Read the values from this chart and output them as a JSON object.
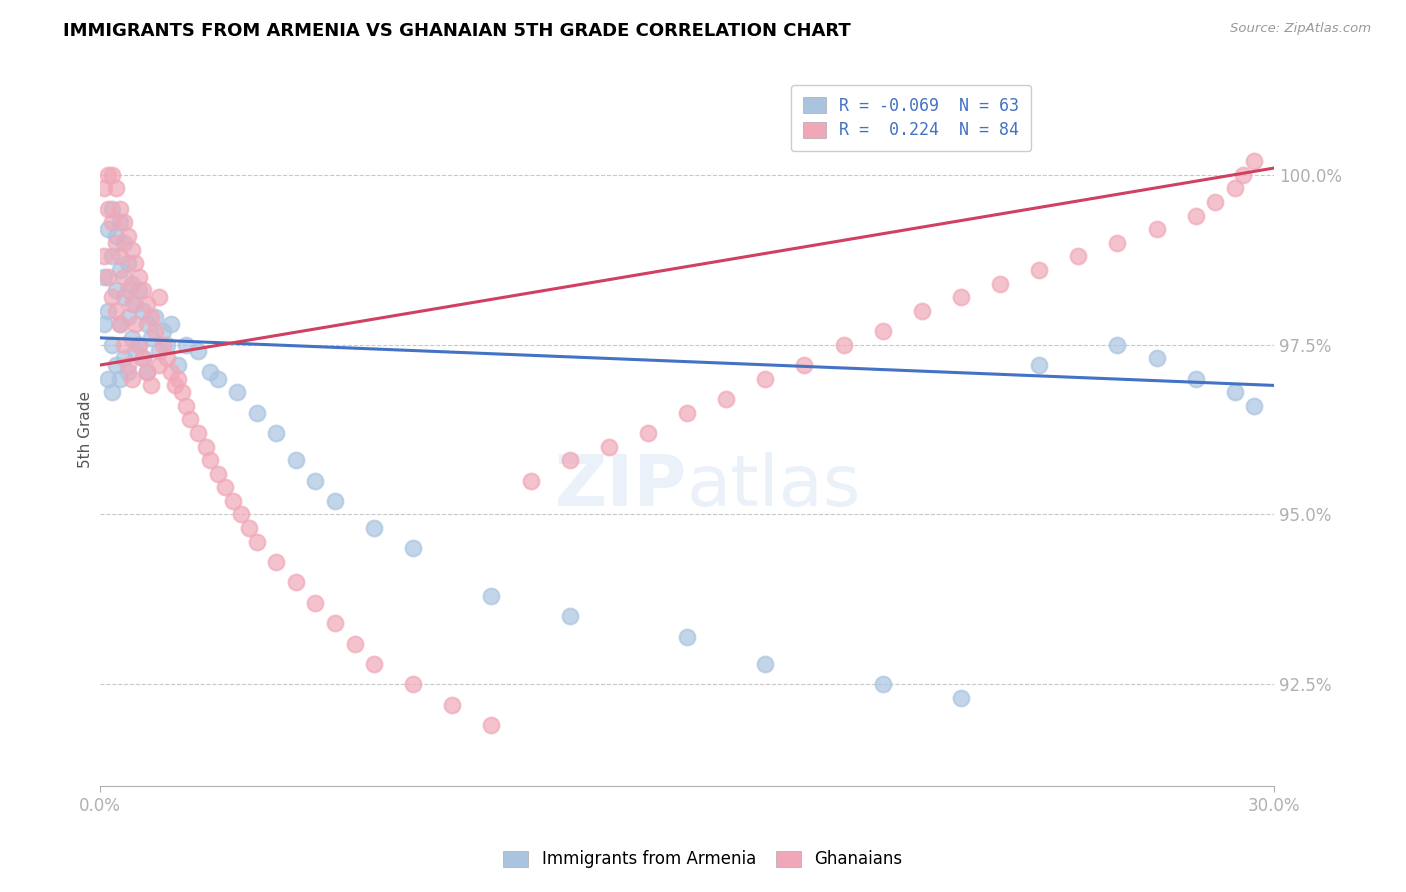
{
  "title": "IMMIGRANTS FROM ARMENIA VS GHANAIAN 5TH GRADE CORRELATION CHART",
  "source_text": "Source: ZipAtlas.com",
  "ylabel": "5th Grade",
  "xlim": [
    0.0,
    0.3
  ],
  "ylim": [
    91.0,
    101.5
  ],
  "yticks": [
    92.5,
    95.0,
    97.5,
    100.0
  ],
  "ytick_labels": [
    "92.5%",
    "95.0%",
    "97.5%",
    "100.0%"
  ],
  "xticks": [
    0.0,
    0.3
  ],
  "xtick_labels": [
    "0.0%",
    "30.0%"
  ],
  "blue_color": "#aac4e0",
  "pink_color": "#f0a8b8",
  "blue_line_color": "#4472C4",
  "pink_line_color": "#d04060",
  "watermark": "ZIPatlas",
  "blue_R": -0.069,
  "blue_N": 63,
  "pink_R": 0.224,
  "pink_N": 84,
  "blue_line_x": [
    0.0,
    0.3
  ],
  "blue_line_y": [
    97.6,
    96.9
  ],
  "pink_line_x": [
    0.0,
    0.3
  ],
  "pink_line_y": [
    97.2,
    100.1
  ],
  "blue_x": [
    0.001,
    0.001,
    0.002,
    0.002,
    0.002,
    0.003,
    0.003,
    0.003,
    0.003,
    0.004,
    0.004,
    0.004,
    0.005,
    0.005,
    0.005,
    0.005,
    0.006,
    0.006,
    0.006,
    0.007,
    0.007,
    0.007,
    0.008,
    0.008,
    0.009,
    0.009,
    0.01,
    0.01,
    0.011,
    0.011,
    0.012,
    0.012,
    0.013,
    0.014,
    0.015,
    0.016,
    0.017,
    0.018,
    0.02,
    0.022,
    0.025,
    0.028,
    0.03,
    0.035,
    0.04,
    0.045,
    0.05,
    0.055,
    0.06,
    0.07,
    0.08,
    0.1,
    0.12,
    0.15,
    0.17,
    0.2,
    0.22,
    0.24,
    0.26,
    0.27,
    0.28,
    0.29,
    0.295
  ],
  "blue_y": [
    98.5,
    97.8,
    99.2,
    98.0,
    97.0,
    99.5,
    98.8,
    97.5,
    96.8,
    99.1,
    98.3,
    97.2,
    99.3,
    98.6,
    97.8,
    97.0,
    99.0,
    98.2,
    97.3,
    98.7,
    97.9,
    97.1,
    98.4,
    97.6,
    98.1,
    97.4,
    98.3,
    97.5,
    98.0,
    97.3,
    97.8,
    97.1,
    97.6,
    97.9,
    97.4,
    97.7,
    97.5,
    97.8,
    97.2,
    97.5,
    97.4,
    97.1,
    97.0,
    96.8,
    96.5,
    96.2,
    95.8,
    95.5,
    95.2,
    94.8,
    94.5,
    93.8,
    93.5,
    93.2,
    92.8,
    92.5,
    92.3,
    97.2,
    97.5,
    97.3,
    97.0,
    96.8,
    96.6
  ],
  "pink_x": [
    0.001,
    0.001,
    0.002,
    0.002,
    0.002,
    0.003,
    0.003,
    0.003,
    0.004,
    0.004,
    0.004,
    0.005,
    0.005,
    0.005,
    0.006,
    0.006,
    0.006,
    0.007,
    0.007,
    0.007,
    0.008,
    0.008,
    0.008,
    0.009,
    0.009,
    0.01,
    0.01,
    0.011,
    0.011,
    0.012,
    0.012,
    0.013,
    0.013,
    0.014,
    0.015,
    0.015,
    0.016,
    0.017,
    0.018,
    0.019,
    0.02,
    0.021,
    0.022,
    0.023,
    0.025,
    0.027,
    0.028,
    0.03,
    0.032,
    0.034,
    0.036,
    0.038,
    0.04,
    0.045,
    0.05,
    0.055,
    0.06,
    0.065,
    0.07,
    0.08,
    0.09,
    0.1,
    0.11,
    0.12,
    0.13,
    0.14,
    0.15,
    0.16,
    0.17,
    0.18,
    0.19,
    0.2,
    0.21,
    0.22,
    0.23,
    0.24,
    0.25,
    0.26,
    0.27,
    0.28,
    0.285,
    0.29,
    0.292,
    0.295
  ],
  "pink_y": [
    99.8,
    98.8,
    100.0,
    99.5,
    98.5,
    100.0,
    99.3,
    98.2,
    99.8,
    99.0,
    98.0,
    99.5,
    98.8,
    97.8,
    99.3,
    98.5,
    97.5,
    99.1,
    98.3,
    97.2,
    98.9,
    98.1,
    97.0,
    98.7,
    97.8,
    98.5,
    97.5,
    98.3,
    97.3,
    98.1,
    97.1,
    97.9,
    96.9,
    97.7,
    98.2,
    97.2,
    97.5,
    97.3,
    97.1,
    96.9,
    97.0,
    96.8,
    96.6,
    96.4,
    96.2,
    96.0,
    95.8,
    95.6,
    95.4,
    95.2,
    95.0,
    94.8,
    94.6,
    94.3,
    94.0,
    93.7,
    93.4,
    93.1,
    92.8,
    92.5,
    92.2,
    91.9,
    95.5,
    95.8,
    96.0,
    96.2,
    96.5,
    96.7,
    97.0,
    97.2,
    97.5,
    97.7,
    98.0,
    98.2,
    98.4,
    98.6,
    98.8,
    99.0,
    99.2,
    99.4,
    99.6,
    99.8,
    100.0,
    100.2
  ]
}
